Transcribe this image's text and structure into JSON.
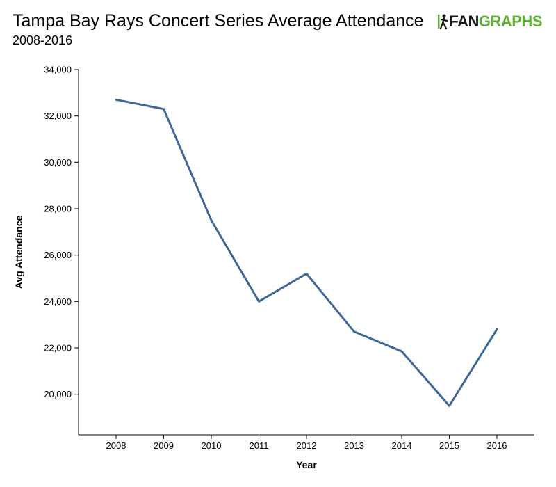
{
  "header": {
    "title": "Tampa Bay Rays Concert Series Average Attendance",
    "subtitle": "2008-2016"
  },
  "logo": {
    "icon": "fangraphs-logo-icon",
    "fan_text": "FAN",
    "graphs_text": "GRAPHS",
    "fan_color": "#1a1a1a",
    "graphs_color": "#5cb131"
  },
  "chart_data": {
    "type": "line",
    "title": "Tampa Bay Rays Concert Series Average Attendance",
    "subtitle": "2008-2016",
    "xlabel": "Year",
    "ylabel": "Avg Attendance",
    "x": [
      2008,
      2009,
      2010,
      2011,
      2012,
      2013,
      2014,
      2015,
      2016
    ],
    "x_tick_labels": [
      "2008",
      "2009",
      "2010",
      "2011",
      "2012",
      "2013",
      "2014",
      "2015",
      "2016"
    ],
    "series": [
      {
        "values": [
          32700,
          32300,
          27500,
          24000,
          25200,
          22700,
          21850,
          19500,
          22800
        ],
        "color": "#3c6797"
      }
    ],
    "y_ticks": [
      20000,
      22000,
      24000,
      26000,
      28000,
      30000,
      32000,
      34000
    ],
    "y_tick_labels": [
      "20,000",
      "22,000",
      "24,000",
      "26,000",
      "28,000",
      "30,000",
      "32,000",
      "34,000"
    ],
    "ylim": [
      18250,
      34000
    ],
    "grid": false,
    "legend": "none"
  }
}
